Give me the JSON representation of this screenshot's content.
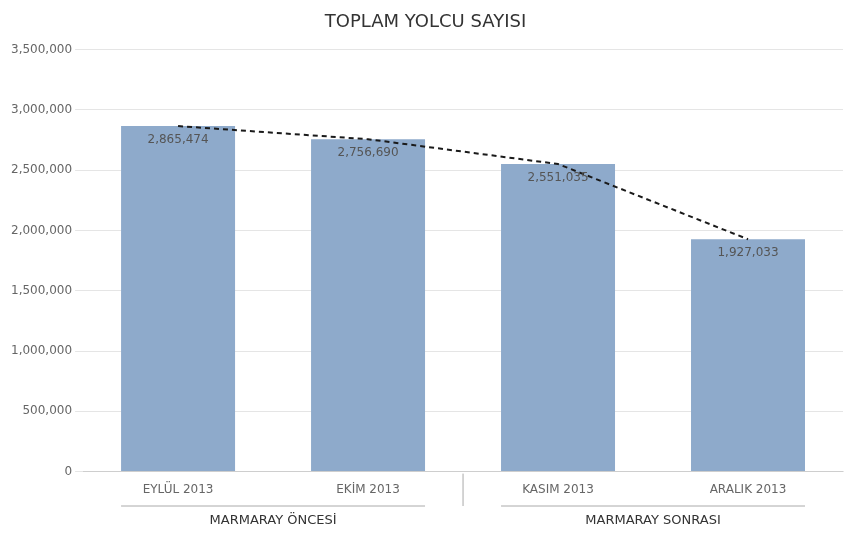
{
  "chart_data": {
    "type": "bar",
    "title": "TOPLAM YOLCU SAYISI",
    "categories": [
      "EYLÜL 2013",
      "EKİM 2013",
      "KASIM 2013",
      "ARALIK 2013"
    ],
    "series": [
      {
        "type": "bar",
        "color": "#8eaacb",
        "values": [
          2865474,
          2756690,
          2551035,
          1927033
        ],
        "value_labels": [
          "2,865,474",
          "2,756,690",
          "2,551,035",
          "1,927,033"
        ]
      },
      {
        "type": "line",
        "color": "#1a1a1a",
        "line_style": "dashed",
        "values": [
          2865474,
          2756690,
          2551035,
          1927033
        ]
      }
    ],
    "data_labels": true,
    "annotations": [
      {
        "text": "MARMARAY ÖNCESİ",
        "categories": [
          "EYLÜL 2013",
          "EKİM 2013"
        ]
      },
      {
        "text": "MARMARAY SONRASI",
        "categories": [
          "KASIM 2013",
          "ARALIK 2013"
        ]
      }
    ],
    "ylim": [
      0,
      3500000
    ],
    "yticks": [
      0,
      {
        "value": 500000,
        "label": "500,000"
      },
      {
        "value": 1000000,
        "label": "1,000,000"
      },
      {
        "value": 1500000,
        "label": "1,500,000"
      },
      {
        "value": 2000000,
        "label": "2,000,000"
      },
      {
        "value": 2500000,
        "label": "2,500,000"
      },
      {
        "value": 3000000,
        "label": "3,000,000"
      },
      {
        "value": 3500000,
        "label": "3,500,000"
      }
    ],
    "grid": true
  }
}
